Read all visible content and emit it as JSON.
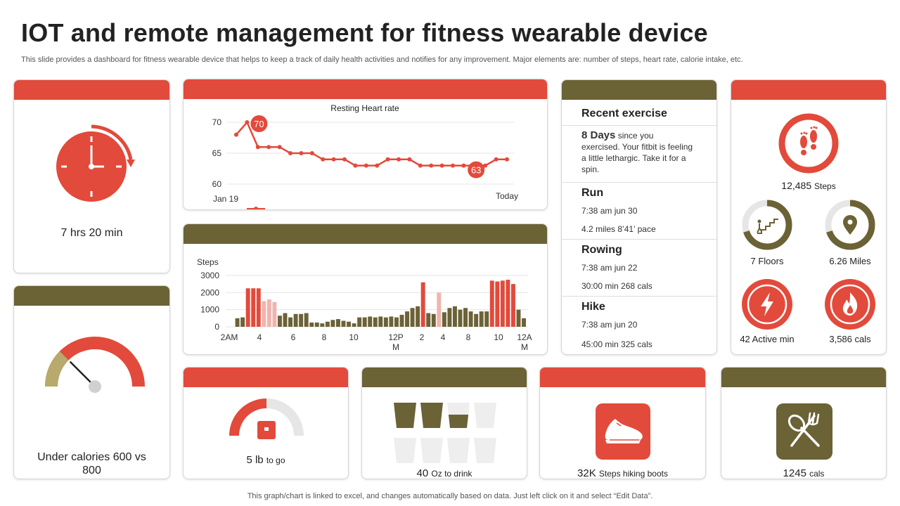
{
  "header": {
    "title": "IOT and remote management for fitness wearable device",
    "subtitle": "This slide provides a dashboard for fitness wearable device that helps to keep a track of daily health activities and notifies for any improvement. Major elements are: number of steps, heart rate, calorie intake, etc."
  },
  "footer": {
    "text": "This graph/chart is linked to excel,  and changes automatically based on data. Just left click on it and select “Edit Data”."
  },
  "colors": {
    "red": "#e24a3b",
    "olive": "#6b6236",
    "light_pink": "#f0b4ae",
    "tan": "#b7aa6c",
    "light_gray": "#e6e6e6"
  },
  "sleep": {
    "icon": "clock-icon",
    "value": "7 hrs 20 min"
  },
  "calories_gauge": {
    "icon": "gauge-icon",
    "label": "Under calories 600 vs 800",
    "fraction": 0.25
  },
  "heart_rate": {
    "chart_data": {
      "type": "line",
      "title": "Resting Heart rate",
      "y_ticks": [
        "70",
        "65",
        "60"
      ],
      "ylim": [
        60,
        70
      ],
      "x_start_label": "Jan 19",
      "x_end_label": "Today",
      "values": [
        68,
        70,
        66,
        66,
        66,
        65,
        65,
        65,
        64,
        64,
        64,
        63,
        63,
        63,
        64,
        64,
        64,
        63,
        63,
        63,
        63,
        63,
        63,
        63,
        64,
        64
      ],
      "annotations": [
        {
          "index": 1,
          "label": "70"
        },
        {
          "index": 23,
          "label": "63"
        }
      ]
    }
  },
  "steps_chart": {
    "chart_data": {
      "type": "bar",
      "ylabel": "Steps",
      "y_ticks": [
        "3000",
        "2000",
        "1000",
        "0"
      ],
      "ylim": [
        0,
        3000
      ],
      "x_labels": [
        "2AM",
        "4",
        "6",
        "8",
        "10",
        "12P\nM",
        "2",
        "4",
        "8",
        "10",
        "12A\nM"
      ],
      "values": [
        500,
        550,
        2250,
        2250,
        2250,
        1500,
        1600,
        1450,
        650,
        800,
        550,
        750,
        750,
        800,
        250,
        250,
        200,
        300,
        400,
        450,
        350,
        300,
        200,
        550,
        550,
        600,
        550,
        600,
        550,
        600,
        550,
        700,
        900,
        1100,
        1200,
        2600,
        800,
        750,
        2000,
        850,
        1100,
        1200,
        1000,
        1100,
        900,
        750,
        900,
        900,
        2700,
        2650,
        2700,
        2750,
        2500,
        1000,
        500
      ],
      "colors": [
        "olive",
        "olive",
        "red",
        "red",
        "red",
        "pink",
        "pink",
        "pink",
        "olive",
        "olive",
        "olive",
        "olive",
        "olive",
        "olive",
        "olive",
        "olive",
        "olive",
        "olive",
        "olive",
        "olive",
        "olive",
        "olive",
        "olive",
        "olive",
        "olive",
        "olive",
        "olive",
        "olive",
        "olive",
        "olive",
        "olive",
        "olive",
        "olive",
        "olive",
        "olive",
        "red",
        "olive",
        "olive",
        "pink",
        "olive",
        "olive",
        "olive",
        "olive",
        "olive",
        "olive",
        "olive",
        "olive",
        "olive",
        "red",
        "red",
        "red",
        "red",
        "red",
        "olive",
        "olive"
      ]
    }
  },
  "recent_exercise": {
    "heading": "Recent exercise",
    "days_strong": "8 Days",
    "days_rest": "since you exercised. Your fitbit is feeling  a little lethargic. Take it for a spin.",
    "entries": [
      {
        "name": "Run",
        "time": "7:38 am jun 30",
        "detail": "4.2 miles 8’41’ pace"
      },
      {
        "name": "Rowing",
        "time": "7:38 am jun 22",
        "detail": "30:00 min 268 cals"
      },
      {
        "name": "Hike",
        "time": "7:38 am jun 20",
        "detail": "45:00 min 325 cals"
      }
    ]
  },
  "activity": {
    "steps": {
      "icon": "footprints-icon",
      "value": "12,485",
      "unit": "Steps"
    },
    "floors": {
      "icon": "stairs-icon",
      "value": "7 Floors",
      "fraction": 0.7
    },
    "miles": {
      "icon": "location-pin-icon",
      "value": "6.26 Miles",
      "fraction": 0.7
    },
    "active": {
      "icon": "lightning-icon",
      "value": "42 Active min"
    },
    "cals": {
      "icon": "flame-icon",
      "value": "3,586 cals"
    }
  },
  "weight": {
    "icon": "scale-icon",
    "value": "5 lb",
    "unit": "to go",
    "fraction": 0.5
  },
  "water": {
    "icon": "glass-icon",
    "value": "40",
    "unit": "Oz to drink",
    "glasses_total": 8,
    "glasses_full": 2,
    "glasses_half": 1
  },
  "shoes": {
    "icon": "sneaker-icon",
    "value": "32K",
    "unit": "Steps hiking boots"
  },
  "food": {
    "icon": "utensils-icon",
    "value": "1245",
    "unit": "cals"
  }
}
